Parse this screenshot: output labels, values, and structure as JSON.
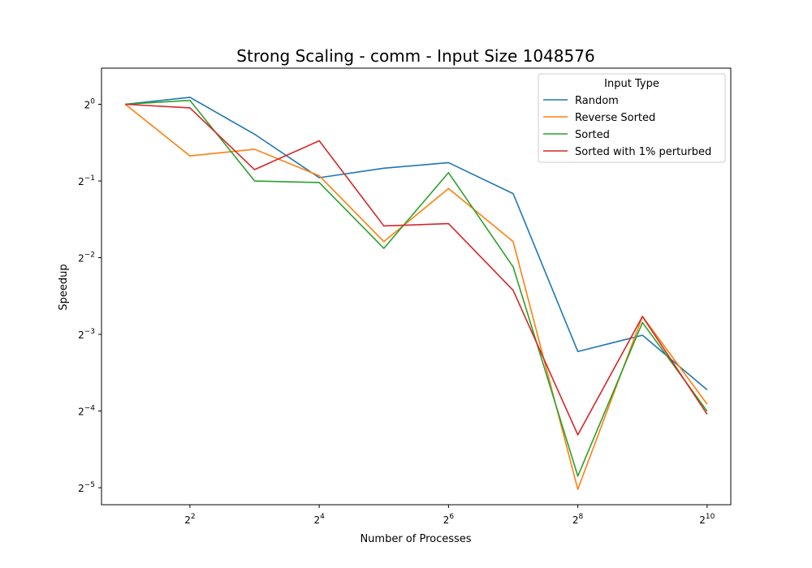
{
  "chart_data": {
    "type": "line",
    "title": "Strong Scaling - comm - Input Size 1048576",
    "xlabel": "Number of Processes",
    "ylabel": "Speedup",
    "x_scale": "log2",
    "y_scale": "log2",
    "x": [
      2,
      4,
      8,
      16,
      32,
      64,
      128,
      256,
      512,
      1024
    ],
    "x_ticks": [
      {
        "base": "2",
        "exp": "2",
        "value": 4
      },
      {
        "base": "2",
        "exp": "4",
        "value": 16
      },
      {
        "base": "2",
        "exp": "6",
        "value": 64
      },
      {
        "base": "2",
        "exp": "8",
        "value": 256
      },
      {
        "base": "2",
        "exp": "10",
        "value": 1024
      }
    ],
    "y_ticks": [
      {
        "base": "2",
        "exp": "0",
        "value": 1
      },
      {
        "base": "2",
        "exp": "−1",
        "value": 0.5
      },
      {
        "base": "2",
        "exp": "−2",
        "value": 0.25
      },
      {
        "base": "2",
        "exp": "−3",
        "value": 0.125
      },
      {
        "base": "2",
        "exp": "−4",
        "value": 0.0625
      },
      {
        "base": "2",
        "exp": "−5",
        "value": 0.03125
      }
    ],
    "xlim": [
      1.55,
      1320
    ],
    "ylim": [
      0.0268,
      1.386
    ],
    "legend": {
      "title": "Input Type",
      "position": "top-right"
    },
    "grid": false,
    "series": [
      {
        "name": "Random",
        "color": "#1f77b4",
        "values": [
          1.0,
          1.065,
          0.763,
          0.515,
          0.561,
          0.59,
          0.446,
          0.107,
          0.124,
          0.0757
        ]
      },
      {
        "name": "Reverse Sorted",
        "color": "#ff7f0e",
        "values": [
          1.0,
          0.627,
          0.666,
          0.524,
          0.289,
          0.467,
          0.289,
          0.0308,
          0.1469,
          0.0665
        ]
      },
      {
        "name": "Sorted",
        "color": "#2ca02c",
        "values": [
          1.0,
          1.036,
          0.5,
          0.493,
          0.272,
          0.539,
          0.23,
          0.0347,
          0.1391,
          0.0624
        ]
      },
      {
        "name": "Sorted with 1% perturbed",
        "color": "#d62728",
        "values": [
          1.0,
          0.968,
          0.554,
          0.719,
          0.333,
          0.34,
          0.186,
          0.0504,
          0.1469,
          0.0607
        ]
      }
    ]
  }
}
